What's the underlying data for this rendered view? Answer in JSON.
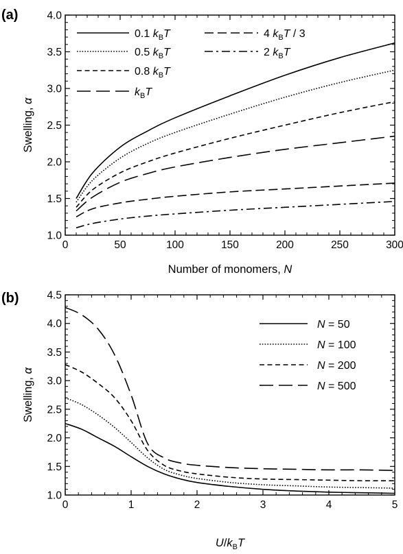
{
  "chart_data": [
    {
      "type": "line",
      "panel_label": "(a)",
      "xlabel": {
        "text": "Number of monomers, ",
        "var": "N"
      },
      "ylabel": {
        "text": "Swelling, ",
        "var": "α"
      },
      "xlim": [
        0,
        300
      ],
      "ylim": [
        1.0,
        4.0
      ],
      "xticks": [
        0,
        50,
        100,
        150,
        200,
        250,
        300
      ],
      "yticks": [
        1.0,
        1.5,
        2.0,
        2.5,
        3.0,
        3.5,
        4.0
      ],
      "tick_labels_x": [
        "0",
        "50",
        "100",
        "150",
        "200",
        "250",
        "300"
      ],
      "tick_labels_y": [
        "1.0",
        "1.5",
        "2.0",
        "2.5",
        "3.0",
        "3.5",
        "4.0"
      ],
      "grid": false,
      "legend_position": "top-left",
      "series": [
        {
          "name_parts": [
            "0.1 ",
            "k",
            "B",
            "T",
            ""
          ],
          "dash": "solid",
          "x": [
            10,
            25,
            50,
            75,
            100,
            150,
            200,
            250,
            300
          ],
          "values": [
            1.5,
            1.85,
            2.2,
            2.42,
            2.6,
            2.9,
            3.18,
            3.42,
            3.62
          ]
        },
        {
          "name_parts": [
            "0.5 ",
            "k",
            "B",
            "T",
            ""
          ],
          "dash": "dotted",
          "x": [
            10,
            25,
            50,
            75,
            100,
            150,
            200,
            250,
            300
          ],
          "values": [
            1.45,
            1.75,
            2.05,
            2.25,
            2.4,
            2.65,
            2.88,
            3.08,
            3.25
          ]
        },
        {
          "name_parts": [
            "0.8 ",
            "k",
            "B",
            "T",
            ""
          ],
          "dash": "short-dash",
          "x": [
            10,
            25,
            50,
            75,
            100,
            150,
            200,
            250,
            300
          ],
          "values": [
            1.38,
            1.62,
            1.85,
            2.0,
            2.12,
            2.32,
            2.5,
            2.67,
            2.82
          ]
        },
        {
          "name_parts": [
            "",
            "k",
            "B",
            "T",
            ""
          ],
          "dash": "long-dash",
          "x": [
            10,
            25,
            50,
            75,
            100,
            150,
            200,
            250,
            300
          ],
          "values": [
            1.33,
            1.52,
            1.72,
            1.84,
            1.93,
            2.06,
            2.17,
            2.26,
            2.35
          ]
        },
        {
          "name_parts": [
            "4 ",
            "k",
            "B",
            "T",
            " / 3"
          ],
          "dash": "medium-dash",
          "x": [
            10,
            25,
            50,
            75,
            100,
            150,
            200,
            250,
            300
          ],
          "values": [
            1.25,
            1.36,
            1.44,
            1.49,
            1.53,
            1.59,
            1.63,
            1.67,
            1.71
          ]
        },
        {
          "name_parts": [
            "2 ",
            "k",
            "B",
            "T",
            ""
          ],
          "dash": "dash-dot",
          "x": [
            10,
            25,
            50,
            75,
            100,
            150,
            200,
            250,
            300
          ],
          "values": [
            1.1,
            1.16,
            1.22,
            1.26,
            1.29,
            1.34,
            1.38,
            1.42,
            1.46
          ]
        }
      ]
    },
    {
      "type": "line",
      "panel_label": "(b)",
      "xlabel": {
        "var_parts": [
          "U",
          "/",
          "k",
          "B",
          "T"
        ]
      },
      "ylabel": {
        "text": "Swelling, ",
        "var": "α"
      },
      "xlim": [
        0,
        5
      ],
      "ylim": [
        1.0,
        4.5
      ],
      "xticks": [
        0,
        1,
        2,
        3,
        4,
        5
      ],
      "yticks": [
        1.0,
        1.5,
        2.0,
        2.5,
        3.0,
        3.5,
        4.0,
        4.5
      ],
      "tick_labels_x": [
        "0",
        "1",
        "2",
        "3",
        "4",
        "5"
      ],
      "tick_labels_y": [
        "1.0",
        "1.5",
        "2.0",
        "2.5",
        "3.0",
        "3.5",
        "4.0",
        "4.5"
      ],
      "grid": false,
      "legend_position": "top-right",
      "series": [
        {
          "name_parts": [
            "N",
            " = 50"
          ],
          "dash": "solid",
          "x": [
            0,
            0.25,
            0.5,
            0.75,
            1.0,
            1.25,
            1.5,
            1.75,
            2.0,
            2.5,
            3.0,
            3.5,
            4.0,
            4.5,
            5.0
          ],
          "values": [
            2.25,
            2.15,
            2.0,
            1.85,
            1.67,
            1.5,
            1.37,
            1.28,
            1.22,
            1.15,
            1.1,
            1.07,
            1.05,
            1.04,
            1.03
          ]
        },
        {
          "name_parts": [
            "N",
            " = 100"
          ],
          "dash": "dotted",
          "x": [
            0,
            0.25,
            0.5,
            0.75,
            1.0,
            1.25,
            1.5,
            1.75,
            2.0,
            2.5,
            3.0,
            3.5,
            4.0,
            4.5,
            5.0
          ],
          "values": [
            2.7,
            2.58,
            2.4,
            2.18,
            1.92,
            1.65,
            1.45,
            1.35,
            1.29,
            1.22,
            1.18,
            1.16,
            1.14,
            1.13,
            1.12
          ]
        },
        {
          "name_parts": [
            "N",
            " = 200"
          ],
          "dash": "short-dash",
          "x": [
            0,
            0.25,
            0.5,
            0.75,
            1.0,
            1.25,
            1.5,
            1.75,
            2.0,
            2.5,
            3.0,
            3.5,
            4.0,
            4.5,
            5.0
          ],
          "values": [
            3.28,
            3.15,
            2.95,
            2.7,
            2.3,
            1.78,
            1.52,
            1.42,
            1.37,
            1.31,
            1.28,
            1.27,
            1.26,
            1.25,
            1.25
          ]
        },
        {
          "name_parts": [
            "N",
            " = 500"
          ],
          "dash": "long-dash",
          "x": [
            0,
            0.25,
            0.5,
            0.75,
            1.0,
            1.25,
            1.5,
            1.75,
            2.0,
            2.5,
            3.0,
            3.5,
            4.0,
            4.5,
            5.0
          ],
          "values": [
            4.28,
            4.15,
            3.9,
            3.45,
            2.75,
            1.9,
            1.65,
            1.56,
            1.52,
            1.48,
            1.46,
            1.45,
            1.44,
            1.44,
            1.43
          ]
        }
      ]
    }
  ]
}
